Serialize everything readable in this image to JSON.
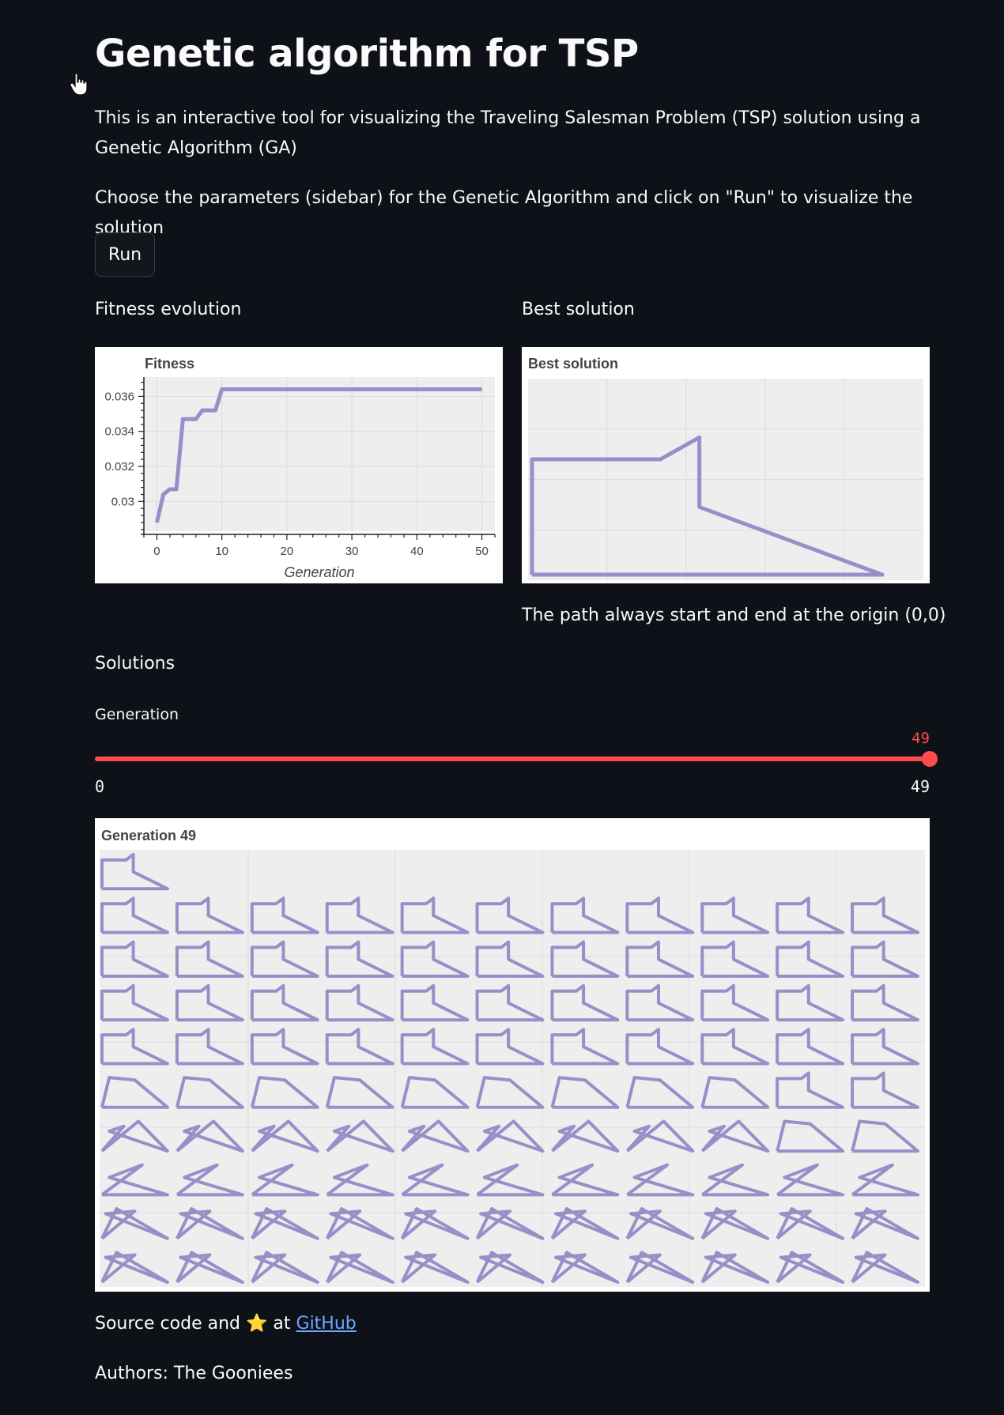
{
  "title": "Genetic algorithm for TSP",
  "intro": "This is an interactive tool for visualizing the Traveling Salesman Problem (TSP) solution using a Genetic Algorithm (GA)",
  "instructions": "Choose the parameters (sidebar) for the Genetic Algorithm and click on \"Run\" to visualize the solution",
  "run_button": "Run",
  "fitness_section": {
    "heading": "Fitness evolution",
    "chart_data": {
      "type": "line",
      "title": "Fitness",
      "xlabel": "Generation",
      "ylabel": "",
      "xlim": [
        -2,
        52
      ],
      "ylim": [
        0.0283,
        0.0371
      ],
      "x_ticks": [
        0,
        10,
        20,
        30,
        40,
        50
      ],
      "y_ticks": [
        0.03,
        0.032,
        0.034,
        0.036
      ],
      "y_tick_labels": [
        "0.03",
        "0.032",
        "0.034",
        "0.036"
      ],
      "grid": true,
      "series": [
        {
          "color": "#9590c8",
          "x": [
            0,
            1,
            2,
            3,
            4,
            5,
            6,
            7,
            8,
            9,
            10,
            11,
            50
          ],
          "y": [
            0.0288,
            0.0304,
            0.0307,
            0.0307,
            0.0347,
            0.0347,
            0.0347,
            0.0352,
            0.0352,
            0.0352,
            0.0364,
            0.0364,
            0.0364
          ]
        }
      ]
    }
  },
  "best_section": {
    "heading": "Best solution",
    "chart_data": {
      "type": "line",
      "title": "Best solution",
      "grid": true,
      "series": [
        {
          "color": "#9590c8",
          "x": [
            0,
            0,
            0.33,
            0.43,
            0.43,
            0.9,
            0
          ],
          "y": [
            0,
            0.58,
            0.58,
            0.69,
            0.34,
            0,
            0
          ]
        }
      ]
    },
    "note": "The path always start and end at the origin (0,0)"
  },
  "solutions_section": {
    "heading": "Solutions",
    "slider": {
      "label": "Generation",
      "value": "49",
      "min_label": "0",
      "max_label": "49",
      "fraction": 1.0
    },
    "grid_title": "Generation 49",
    "grid": {
      "rows": 10,
      "cols": 11,
      "first_row_count": 1
    }
  },
  "footer": {
    "source_prefix": "Source code and",
    "star": "⭐",
    "source_mid": "at",
    "github_link": "GitHub",
    "authors": "Authors: The Gooniees"
  },
  "colors": {
    "background": "#0e1117",
    "accent": "#ff4b4b",
    "series": "#9590c8",
    "link": "#6ea8fe"
  }
}
